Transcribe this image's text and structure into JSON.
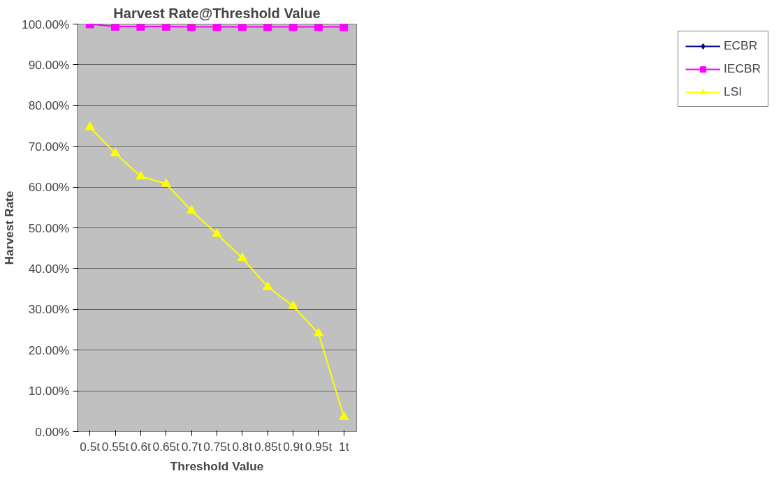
{
  "chart_data": {
    "type": "line",
    "title": "Harvest Rate@Threshold Value",
    "xlabel": "Threshold Value",
    "ylabel": "Harvest Rate",
    "categories": [
      "0.5t",
      "0.55t",
      "0.6t",
      "0.65t",
      "0.7t",
      "0.75t",
      "0.8t",
      "0.85t",
      "0.9t",
      "0.95t",
      "1t"
    ],
    "series": [
      {
        "name": "ECBR",
        "color": "#000080",
        "marker": "diamond",
        "values": [
          null,
          null,
          null,
          null,
          null,
          null,
          null,
          null,
          null,
          null,
          null
        ]
      },
      {
        "name": "IECBR",
        "color": "#ff00ff",
        "marker": "square",
        "values": [
          100,
          99.4,
          99.4,
          99.4,
          99.3,
          99.3,
          99.3,
          99.3,
          99.3,
          99.3,
          99.3
        ]
      },
      {
        "name": "LSI",
        "color": "#ffff00",
        "marker": "triangle",
        "values": [
          74.7,
          68.3,
          62.6,
          60.8,
          54.2,
          48.5,
          42.6,
          35.5,
          30.8,
          24.1,
          3.6
        ]
      }
    ],
    "ylim": [
      0,
      100
    ],
    "yticks": [
      {
        "value": 0,
        "label": "0.00%"
      },
      {
        "value": 10,
        "label": "10.00%"
      },
      {
        "value": 20,
        "label": "20.00%"
      },
      {
        "value": 30,
        "label": "30.00%"
      },
      {
        "value": 40,
        "label": "40.00%"
      },
      {
        "value": 50,
        "label": "50.00%"
      },
      {
        "value": 60,
        "label": "60.00%"
      },
      {
        "value": 70,
        "label": "70.00%"
      },
      {
        "value": 80,
        "label": "80.00%"
      },
      {
        "value": 90,
        "label": "90.00%"
      },
      {
        "value": 100,
        "label": "100.00%"
      }
    ],
    "grid": "y",
    "legend": "right"
  }
}
